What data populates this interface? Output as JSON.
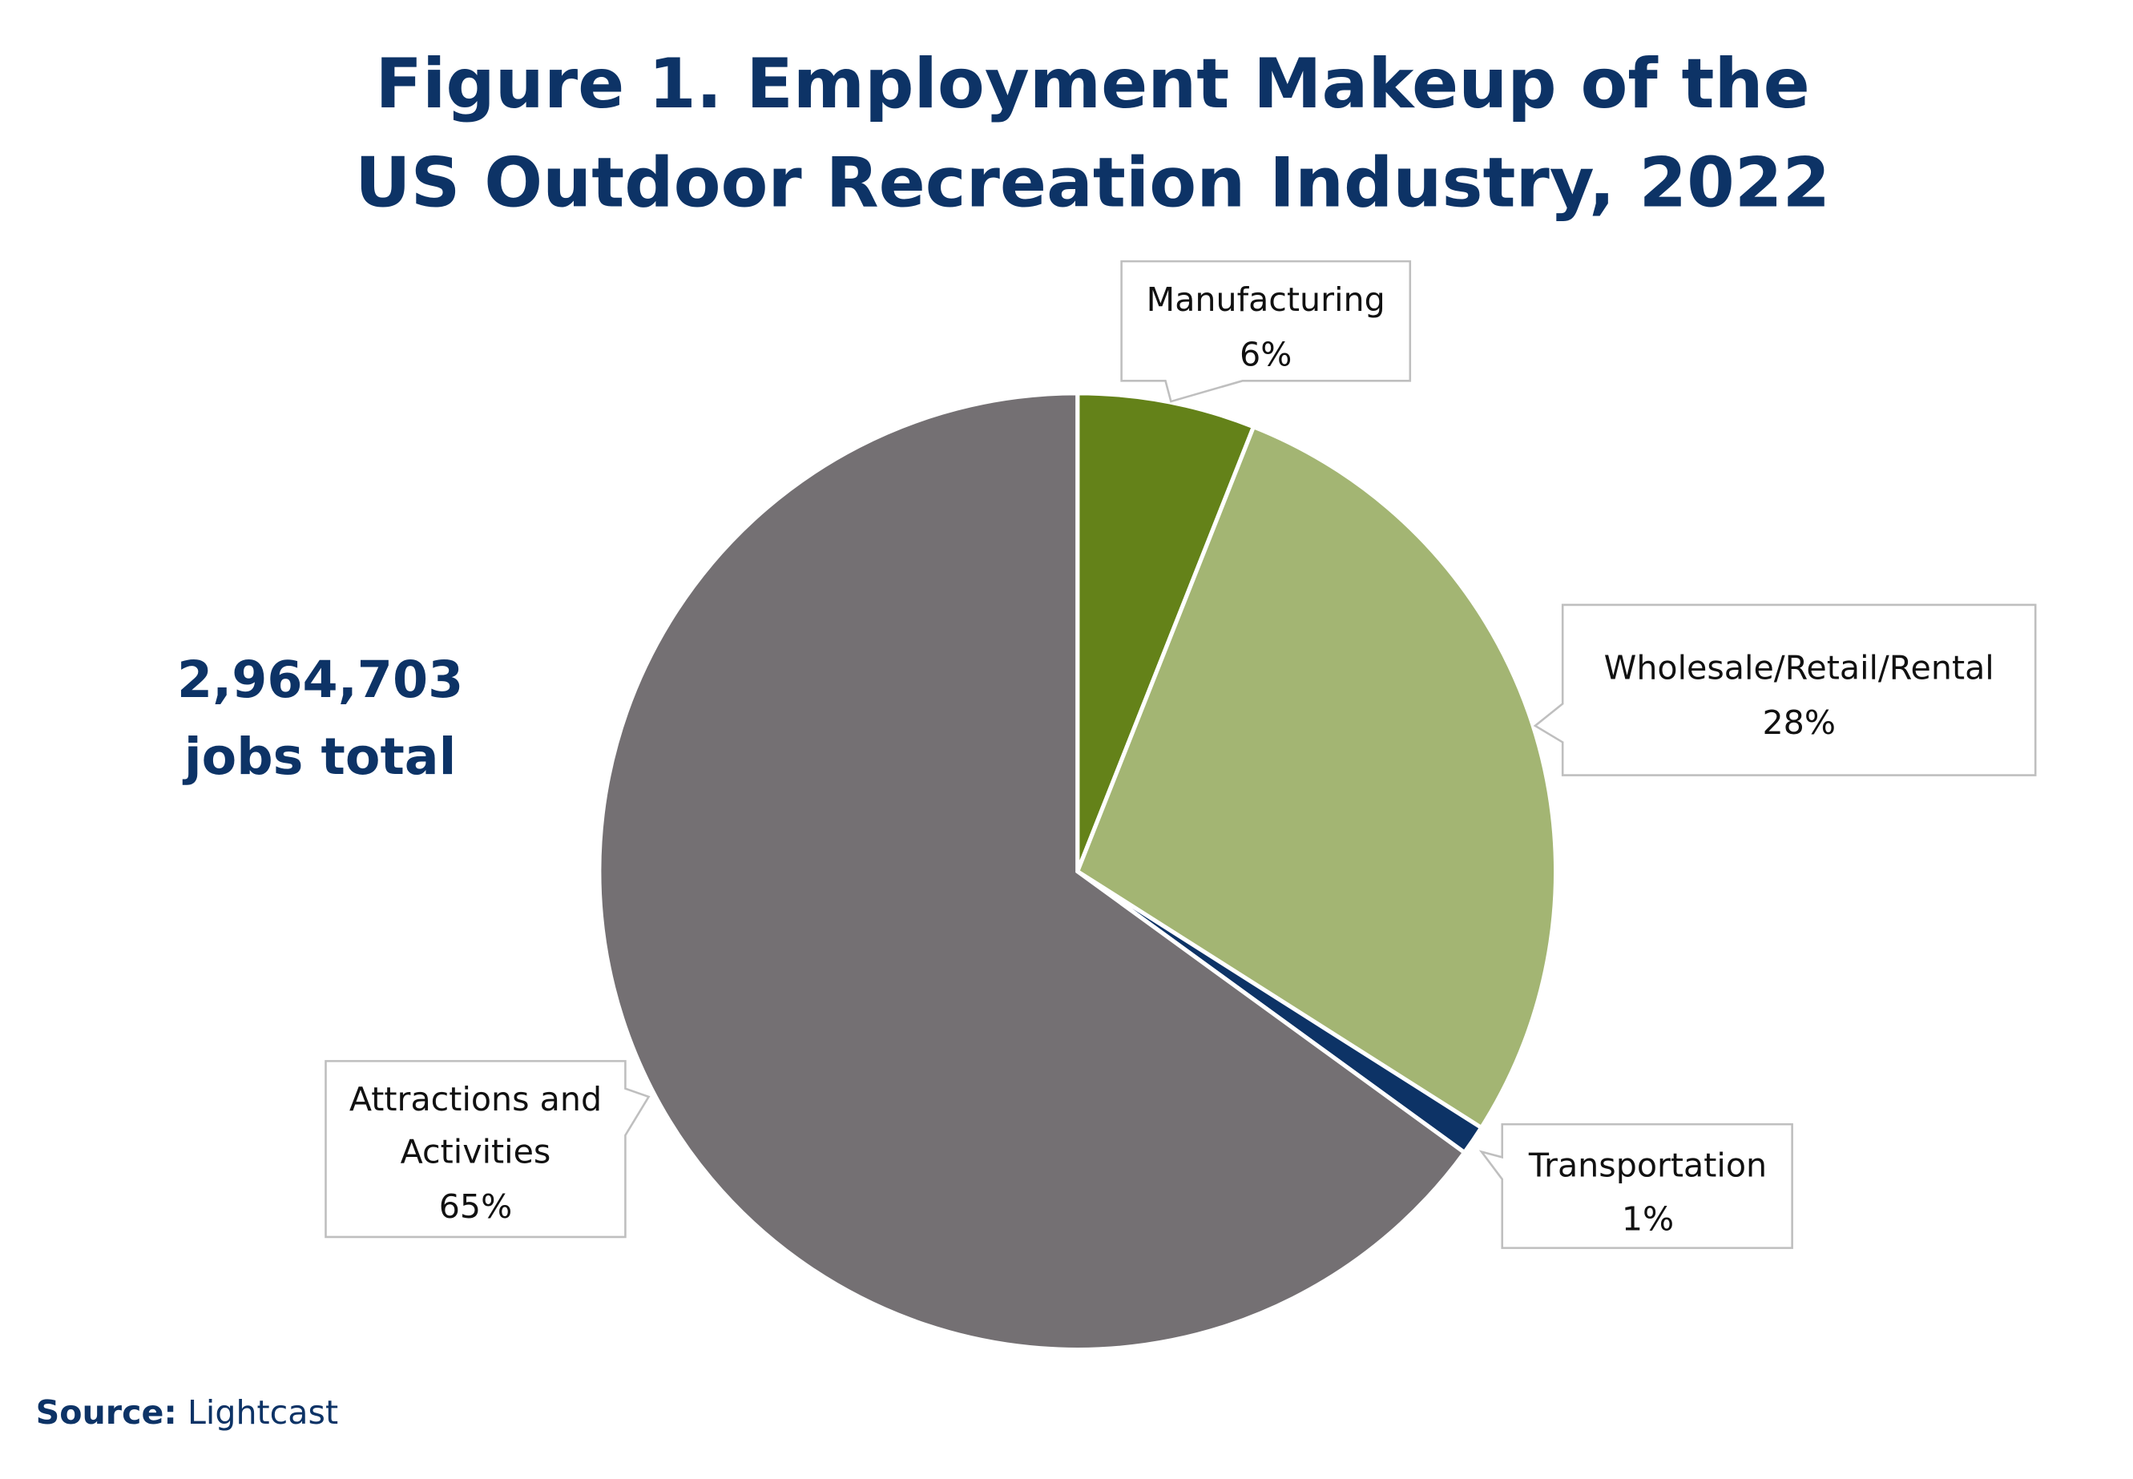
{
  "chart_data": {
    "type": "pie",
    "title": [
      "Figure 1. Employment Makeup of the",
      "US Outdoor Recreation Industry, 2022"
    ],
    "unit": "%",
    "slices": [
      {
        "label": "Manufacturing",
        "value": 6,
        "display": "6%",
        "color": "#648219"
      },
      {
        "label": "Wholesale/Retail/Rental",
        "value": 28,
        "display": "28%",
        "color": "#a3b573"
      },
      {
        "label": "Transportation",
        "value": 1,
        "display": "1%",
        "color": "#0d3366"
      },
      {
        "label": "Attractions and Activities",
        "value": 65,
        "display": "65%",
        "color": "#747073"
      }
    ],
    "start_angle": "12 o'clock, clockwise",
    "annotation": [
      "2,964,703",
      "jobs total"
    ],
    "source_label": "Source:",
    "source_value": "Lightcast"
  }
}
